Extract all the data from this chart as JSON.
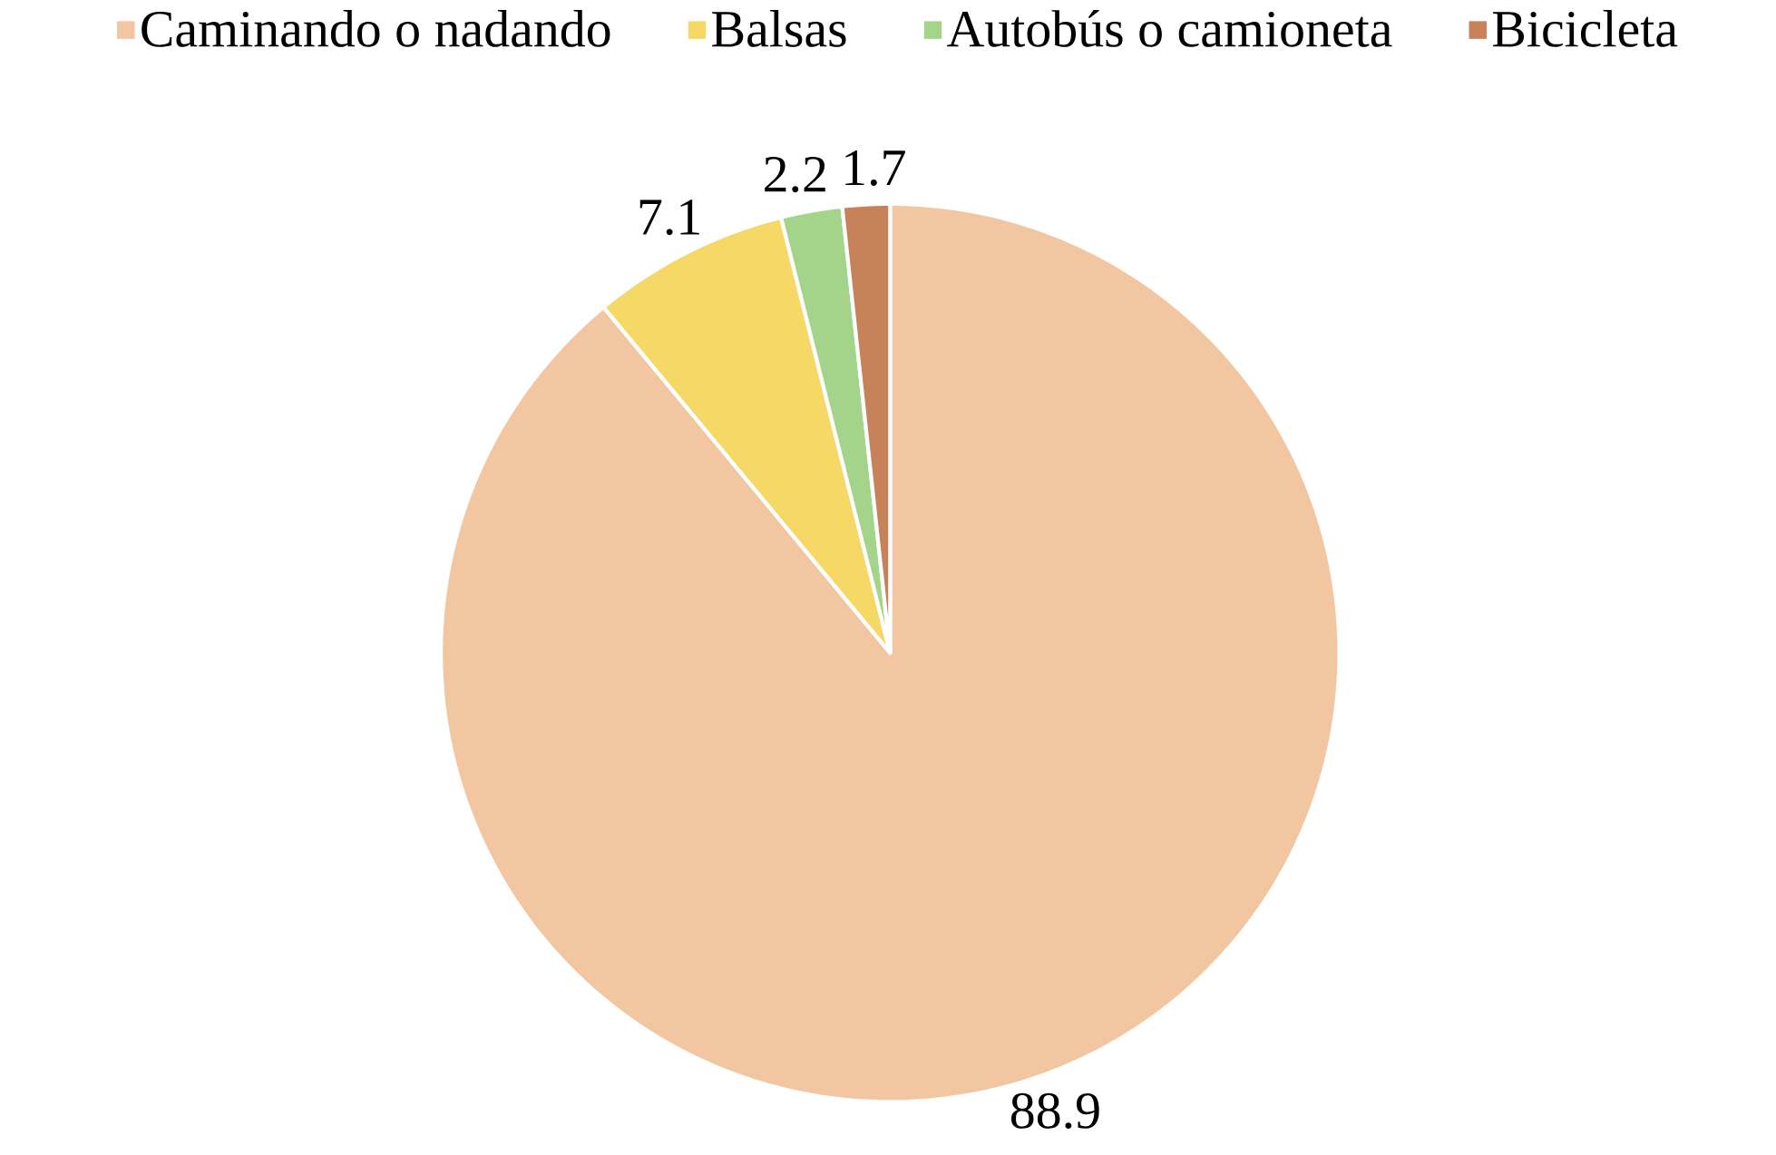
{
  "chart_data": {
    "type": "pie",
    "categories": [
      "Caminando o nadando",
      "Balsas",
      "Autobús o camioneta",
      "Bicicleta"
    ],
    "values": [
      88.9,
      7.1,
      2.2,
      1.7
    ],
    "colors": [
      "#f2c6a0",
      "#f5d866",
      "#a3d48a",
      "#c8825a"
    ],
    "data_labels": true,
    "legend": "top"
  }
}
